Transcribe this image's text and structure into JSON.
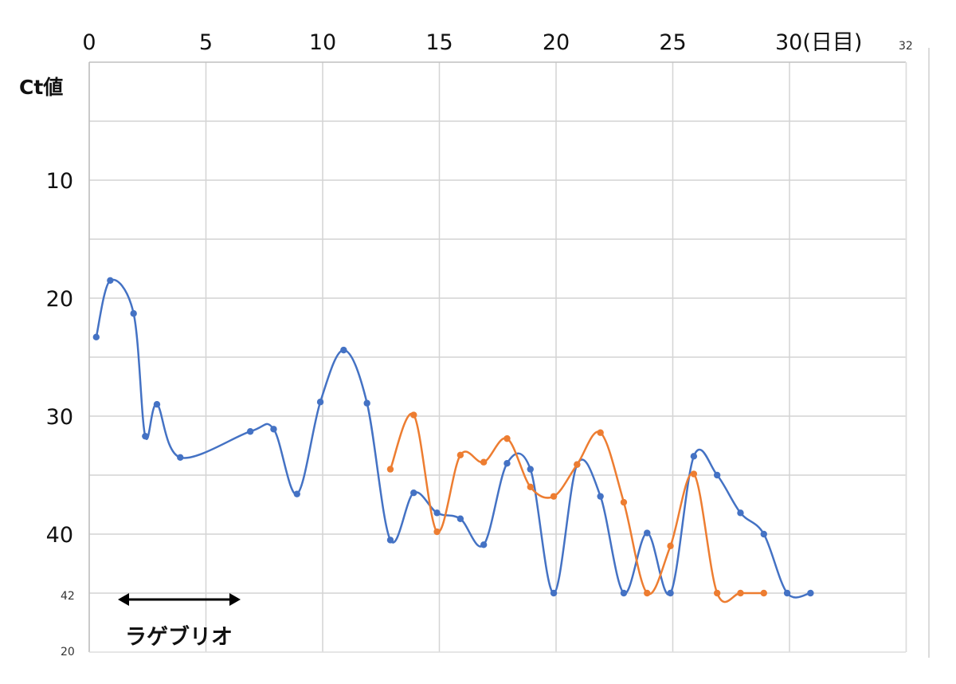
{
  "chart_data": {
    "type": "line",
    "ylabel": "Ct値",
    "x_unit_label": "30(日目)",
    "x_ticks": [
      0,
      5,
      10,
      15,
      20,
      25,
      30
    ],
    "x_tick_labels": [
      "0",
      "5",
      "10",
      "15",
      "20",
      "25",
      "30(日目)"
    ],
    "y_ticks": [
      10,
      20,
      30,
      40
    ],
    "y_tick_labels": [
      "10",
      "20",
      "30",
      "40"
    ],
    "xlim": [
      0,
      35
    ],
    "ylim": [
      0,
      50
    ],
    "y_inverted": true,
    "grid": true,
    "edge_labels": {
      "top_right": "32",
      "bottom_left_1": "42",
      "bottom_left_2": "20"
    },
    "annotation": {
      "text": "ラゲブリオ",
      "x_start": 1.5,
      "x_end": 6.5
    },
    "series": [
      {
        "color": "#4472C4",
        "x": [
          0.3,
          0.9,
          1.9,
          2.4,
          2.9,
          3.9,
          6.9,
          7.9,
          8.9,
          9.9,
          10.9,
          11.9,
          12.9,
          13.9,
          14.9,
          15.9,
          16.9,
          17.9,
          18.9,
          19.9,
          20.9,
          21.9,
          22.9,
          23.9,
          24.9,
          25.9,
          26.9,
          27.9,
          28.9,
          29.9,
          30.9
        ],
        "values": [
          23.3,
          18.5,
          21.3,
          31.7,
          29.0,
          33.5,
          31.3,
          31.1,
          36.6,
          28.8,
          24.4,
          28.9,
          40.5,
          36.5,
          38.2,
          38.7,
          40.9,
          34.0,
          34.5,
          45.0,
          34.1,
          36.8,
          45.0,
          39.9,
          45.0,
          33.4,
          35.0,
          38.2,
          40.0,
          45.0,
          45.0
        ]
      },
      {
        "color": "#ED7D31",
        "x": [
          12.9,
          13.9,
          14.9,
          15.9,
          16.9,
          17.9,
          18.9,
          19.9,
          20.9,
          21.9,
          22.9,
          23.9,
          24.9,
          25.9,
          26.9,
          27.9,
          28.9
        ],
        "values": [
          34.5,
          29.9,
          39.8,
          33.3,
          33.9,
          31.9,
          36.0,
          36.8,
          34.1,
          31.4,
          37.3,
          45.0,
          41.0,
          34.9,
          45.0,
          45.0,
          45.0
        ]
      }
    ]
  }
}
